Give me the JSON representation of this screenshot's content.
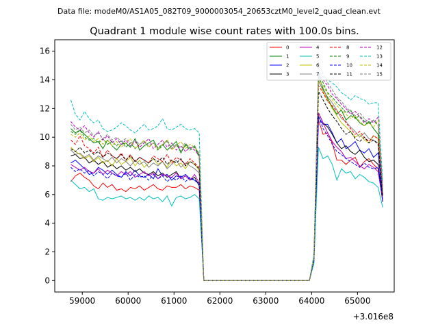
{
  "chart_data": {
    "type": "line",
    "suptitle": "Data file: modeM0/AS1A05_082T09_9000003054_20653cztM0_level2_quad_clean.evt",
    "title": "Quadrant 1 module wise count rates with 100.0s bins.",
    "xlabel": "",
    "ylabel": "",
    "x_offset_label": "+3.016e8",
    "x_ticks": [
      "59000",
      "60000",
      "61000",
      "62000",
      "63000",
      "64000",
      "65000"
    ],
    "y_ticks": [
      "0",
      "2",
      "4",
      "6",
      "8",
      "10",
      "12",
      "14",
      "16"
    ],
    "xlim": [
      301658400,
      301665800
    ],
    "ylim": [
      -0.8,
      16.8
    ],
    "grid": false,
    "legend": {
      "placement": "top-right",
      "columns": 4
    },
    "time_grid": {
      "start": 301658750,
      "step": 100,
      "count": 69
    },
    "series": [
      {
        "name": "0",
        "color": "#ff0000",
        "dash": "solid",
        "values": [
          6.9,
          7.3,
          7.5,
          7.2,
          7.0,
          6.6,
          6.4,
          6.8,
          6.5,
          6.7,
          6.3,
          6.4,
          6.2,
          6.5,
          6.4,
          6.6,
          6.3,
          6.5,
          6.7,
          6.4,
          6.3,
          6.6,
          6.5,
          6.5,
          6.7,
          6.4,
          6.6,
          6.5,
          6.3,
          0.0,
          0.0,
          0.0,
          0.0,
          0.0,
          0.0,
          0.0,
          0.0,
          0.0,
          0.0,
          0.0,
          0.0,
          0.0,
          0.0,
          0.0,
          0.0,
          0.0,
          0.0,
          0.0,
          0.0,
          0.0,
          0.0,
          0.0,
          0.0,
          1.3,
          11.2,
          10.2,
          10.3,
          9.6,
          8.4,
          8.4,
          8.1,
          8.4,
          8.6,
          7.9,
          8.3,
          8.5,
          8.1,
          7.8,
          5.5
        ]
      },
      {
        "name": "1",
        "color": "#008000",
        "dash": "solid",
        "values": [
          10.6,
          10.3,
          10.5,
          10.2,
          9.9,
          9.6,
          9.7,
          9.2,
          9.8,
          9.4,
          9.1,
          9.5,
          9.6,
          9.3,
          9.9,
          9.1,
          9.4,
          9.6,
          9.8,
          9.2,
          9.5,
          9.1,
          9.4,
          9.7,
          8.9,
          9.5,
          9.2,
          9.4,
          8.7,
          0.0,
          0.0,
          0.0,
          0.0,
          0.0,
          0.0,
          0.0,
          0.0,
          0.0,
          0.0,
          0.0,
          0.0,
          0.0,
          0.0,
          0.0,
          0.0,
          0.0,
          0.0,
          0.0,
          0.0,
          0.0,
          0.0,
          0.0,
          0.0,
          1.6,
          14.3,
          13.4,
          12.7,
          12.1,
          11.6,
          11.9,
          11.2,
          11.5,
          11.4,
          11.0,
          10.8,
          11.1,
          10.6,
          10.2,
          6.0
        ]
      },
      {
        "name": "2",
        "color": "#0000ff",
        "dash": "solid",
        "values": [
          8.2,
          8.4,
          8.1,
          7.8,
          7.4,
          7.5,
          7.9,
          7.7,
          7.4,
          7.7,
          7.4,
          7.2,
          7.6,
          7.3,
          7.7,
          7.3,
          7.2,
          7.4,
          7.1,
          7.8,
          7.3,
          7.4,
          7.0,
          7.3,
          7.2,
          7.4,
          7.1,
          7.0,
          6.8,
          0.0,
          0.0,
          0.0,
          0.0,
          0.0,
          0.0,
          0.0,
          0.0,
          0.0,
          0.0,
          0.0,
          0.0,
          0.0,
          0.0,
          0.0,
          0.0,
          0.0,
          0.0,
          0.0,
          0.0,
          0.0,
          0.0,
          0.0,
          0.0,
          1.4,
          11.4,
          10.9,
          10.9,
          10.3,
          9.6,
          9.9,
          9.2,
          9.4,
          9.7,
          9.1,
          8.9,
          9.2,
          8.6,
          8.9,
          5.6
        ]
      },
      {
        "name": "3",
        "color": "#000000",
        "dash": "solid",
        "values": [
          8.7,
          8.8,
          8.5,
          8.6,
          8.2,
          8.4,
          8.1,
          8.3,
          7.9,
          8.1,
          7.8,
          8.0,
          7.7,
          7.9,
          7.6,
          7.8,
          7.5,
          7.4,
          7.6,
          7.3,
          7.5,
          7.2,
          7.4,
          7.6,
          7.1,
          7.3,
          7.0,
          7.2,
          6.6,
          0.0,
          0.0,
          0.0,
          0.0,
          0.0,
          0.0,
          0.0,
          0.0,
          0.0,
          0.0,
          0.0,
          0.0,
          0.0,
          0.0,
          0.0,
          0.0,
          0.0,
          0.0,
          0.0,
          0.0,
          0.0,
          0.0,
          0.0,
          0.0,
          1.3,
          11.7,
          11.0,
          10.7,
          10.2,
          9.6,
          9.2,
          9.4,
          9.0,
          8.8,
          9.1,
          8.6,
          8.3,
          8.4,
          8.1,
          5.5
        ]
      },
      {
        "name": "4",
        "color": "#bf00bf",
        "dash": "solid",
        "values": [
          8.1,
          7.9,
          7.7,
          7.9,
          7.6,
          7.5,
          7.8,
          7.4,
          7.7,
          7.5,
          7.3,
          7.6,
          7.4,
          7.6,
          7.2,
          7.4,
          7.6,
          7.3,
          7.5,
          7.1,
          7.4,
          7.3,
          7.2,
          7.5,
          7.1,
          7.3,
          7.0,
          7.4,
          6.8,
          0.0,
          0.0,
          0.0,
          0.0,
          0.0,
          0.0,
          0.0,
          0.0,
          0.0,
          0.0,
          0.0,
          0.0,
          0.0,
          0.0,
          0.0,
          0.0,
          0.0,
          0.0,
          0.0,
          0.0,
          0.0,
          0.0,
          0.0,
          0.0,
          1.5,
          11.7,
          11.0,
          10.3,
          9.7,
          9.3,
          9.0,
          8.5,
          8.6,
          8.3,
          8.0,
          7.8,
          8.1,
          7.9,
          7.6,
          5.6
        ]
      },
      {
        "name": "5",
        "color": "#00bfbf",
        "dash": "solid",
        "values": [
          7.0,
          6.7,
          6.4,
          6.5,
          6.2,
          6.4,
          5.7,
          5.6,
          5.8,
          5.7,
          5.8,
          5.9,
          5.7,
          5.8,
          5.6,
          5.8,
          5.6,
          5.9,
          5.7,
          5.8,
          5.5,
          5.9,
          5.2,
          5.8,
          5.9,
          5.7,
          5.8,
          6.0,
          5.7,
          0.0,
          0.0,
          0.0,
          0.0,
          0.0,
          0.0,
          0.0,
          0.0,
          0.0,
          0.0,
          0.0,
          0.0,
          0.0,
          0.0,
          0.0,
          0.0,
          0.0,
          0.0,
          0.0,
          0.0,
          0.0,
          0.0,
          0.0,
          0.0,
          1.2,
          9.3,
          8.5,
          8.7,
          8.1,
          7.0,
          7.8,
          7.5,
          7.6,
          7.1,
          7.4,
          7.2,
          6.9,
          6.8,
          6.5,
          5.1
        ]
      },
      {
        "name": "6",
        "color": "#bfbf00",
        "dash": "solid",
        "values": [
          9.3,
          9.0,
          8.8,
          8.5,
          8.7,
          8.3,
          8.6,
          8.2,
          8.4,
          8.0,
          8.5,
          8.1,
          8.3,
          8.6,
          8.0,
          8.4,
          7.9,
          8.2,
          8.5,
          8.1,
          8.3,
          7.9,
          8.4,
          8.0,
          8.2,
          7.8,
          8.3,
          8.1,
          7.7,
          0.0,
          0.0,
          0.0,
          0.0,
          0.0,
          0.0,
          0.0,
          0.0,
          0.0,
          0.0,
          0.0,
          0.0,
          0.0,
          0.0,
          0.0,
          0.0,
          0.0,
          0.0,
          0.0,
          0.0,
          0.0,
          0.0,
          0.0,
          0.0,
          1.5,
          14.0,
          13.2,
          12.6,
          12.0,
          11.5,
          11.0,
          10.7,
          10.4,
          10.0,
          10.2,
          9.8,
          9.6,
          10.1,
          9.9,
          6.2
        ]
      },
      {
        "name": "7",
        "color": "#808080",
        "dash": "solid",
        "values": [
          9.1,
          8.8,
          8.9,
          8.6,
          8.8,
          8.4,
          8.7,
          8.5,
          8.3,
          8.6,
          8.2,
          8.5,
          8.3,
          8.0,
          8.4,
          8.1,
          8.3,
          7.9,
          8.2,
          8.0,
          8.3,
          7.8,
          8.1,
          8.4,
          7.9,
          8.2,
          8.0,
          7.8,
          7.5,
          0.0,
          0.0,
          0.0,
          0.0,
          0.0,
          0.0,
          0.0,
          0.0,
          0.0,
          0.0,
          0.0,
          0.0,
          0.0,
          0.0,
          0.0,
          0.0,
          0.0,
          0.0,
          0.0,
          0.0,
          0.0,
          0.0,
          0.0,
          0.0,
          1.5,
          13.9,
          13.3,
          12.8,
          12.4,
          11.9,
          11.3,
          11.1,
          10.7,
          10.4,
          10.0,
          10.3,
          9.9,
          9.8,
          9.6,
          6.1
        ]
      },
      {
        "name": "8",
        "color": "#ff0000",
        "dash": "dashed",
        "values": [
          9.8,
          9.5,
          10.1,
          9.4,
          9.2,
          8.9,
          9.3,
          8.6,
          9.1,
          8.7,
          8.5,
          8.9,
          8.4,
          8.8,
          8.3,
          8.6,
          8.4,
          8.2,
          8.7,
          8.5,
          8.3,
          8.8,
          8.2,
          8.6,
          8.4,
          8.1,
          8.5,
          8.2,
          7.9,
          0.0,
          0.0,
          0.0,
          0.0,
          0.0,
          0.0,
          0.0,
          0.0,
          0.0,
          0.0,
          0.0,
          0.0,
          0.0,
          0.0,
          0.0,
          0.0,
          0.0,
          0.0,
          0.0,
          0.0,
          0.0,
          0.0,
          0.0,
          0.0,
          1.6,
          13.6,
          13.1,
          12.5,
          12.2,
          11.8,
          11.5,
          11.0,
          10.6,
          10.2,
          10.4,
          10.0,
          9.7,
          10.1,
          9.9,
          6.0
        ]
      },
      {
        "name": "9",
        "color": "#008000",
        "dash": "dashed",
        "values": [
          10.4,
          10.2,
          10.5,
          10.0,
          9.8,
          9.9,
          9.6,
          9.9,
          9.5,
          9.7,
          9.4,
          9.8,
          9.3,
          9.6,
          9.2,
          9.5,
          9.7,
          9.3,
          9.6,
          9.1,
          9.4,
          9.8,
          9.2,
          9.5,
          9.0,
          9.4,
          9.1,
          9.3,
          8.6,
          0.0,
          0.0,
          0.0,
          0.0,
          0.0,
          0.0,
          0.0,
          0.0,
          0.0,
          0.0,
          0.0,
          0.0,
          0.0,
          0.0,
          0.0,
          0.0,
          0.0,
          0.0,
          0.0,
          0.0,
          0.0,
          0.0,
          0.0,
          0.0,
          1.6,
          14.4,
          13.8,
          13.1,
          12.8,
          12.4,
          12.1,
          11.7,
          11.9,
          11.3,
          11.5,
          11.1,
          10.9,
          11.2,
          10.8,
          6.4
        ]
      },
      {
        "name": "10",
        "color": "#0000ff",
        "dash": "dashed",
        "values": [
          7.9,
          7.6,
          7.8,
          7.5,
          7.7,
          7.3,
          7.6,
          7.4,
          7.1,
          7.5,
          7.3,
          7.2,
          7.5,
          7.0,
          7.4,
          7.2,
          7.3,
          7.0,
          7.4,
          7.1,
          7.3,
          6.9,
          7.2,
          7.0,
          7.3,
          6.9,
          7.2,
          7.0,
          6.7,
          0.0,
          0.0,
          0.0,
          0.0,
          0.0,
          0.0,
          0.0,
          0.0,
          0.0,
          0.0,
          0.0,
          0.0,
          0.0,
          0.0,
          0.0,
          0.0,
          0.0,
          0.0,
          0.0,
          0.0,
          0.0,
          0.0,
          0.0,
          0.0,
          1.4,
          11.5,
          10.6,
          10.1,
          9.5,
          9.0,
          8.8,
          8.5,
          8.3,
          8.1,
          7.9,
          8.2,
          7.9,
          7.8,
          7.9,
          5.5
        ]
      },
      {
        "name": "11",
        "color": "#000000",
        "dash": "dashed",
        "values": [
          9.2,
          9.0,
          9.3,
          8.9,
          9.1,
          8.8,
          9.0,
          8.6,
          8.9,
          8.7,
          8.5,
          8.8,
          8.4,
          8.7,
          8.3,
          8.6,
          8.4,
          8.2,
          8.5,
          8.3,
          8.6,
          8.1,
          8.4,
          8.2,
          8.5,
          8.0,
          8.3,
          8.1,
          7.8,
          0.0,
          0.0,
          0.0,
          0.0,
          0.0,
          0.0,
          0.0,
          0.0,
          0.0,
          0.0,
          0.0,
          0.0,
          0.0,
          0.0,
          0.0,
          0.0,
          0.0,
          0.0,
          0.0,
          0.0,
          0.0,
          0.0,
          0.0,
          0.0,
          1.5,
          13.2,
          12.6,
          12.0,
          11.5,
          11.1,
          10.6,
          10.2,
          10.4,
          9.9,
          9.7,
          10.0,
          9.6,
          9.8,
          9.5,
          5.9
        ]
      },
      {
        "name": "12",
        "color": "#bf00bf",
        "dash": "dashed",
        "values": [
          11.1,
          10.7,
          10.5,
          10.8,
          10.3,
          10.0,
          10.4,
          9.8,
          10.1,
          9.6,
          9.9,
          9.5,
          9.8,
          9.4,
          9.7,
          9.3,
          9.6,
          9.9,
          9.2,
          9.5,
          9.8,
          9.3,
          9.6,
          9.1,
          9.4,
          9.0,
          9.3,
          9.1,
          8.7,
          0.0,
          0.0,
          0.0,
          0.0,
          0.0,
          0.0,
          0.0,
          0.0,
          0.0,
          0.0,
          0.0,
          0.0,
          0.0,
          0.0,
          0.0,
          0.0,
          0.0,
          0.0,
          0.0,
          0.0,
          0.0,
          0.0,
          0.0,
          0.0,
          1.6,
          14.5,
          14.0,
          13.6,
          13.0,
          12.7,
          12.3,
          12.0,
          11.6,
          11.8,
          11.4,
          11.0,
          11.3,
          11.0,
          11.4,
          6.5
        ]
      },
      {
        "name": "13",
        "color": "#00bfbf",
        "dash": "dashed",
        "values": [
          12.6,
          11.6,
          11.2,
          11.8,
          11.3,
          11.0,
          11.2,
          10.6,
          10.4,
          10.5,
          10.7,
          11.0,
          10.8,
          10.5,
          10.3,
          10.6,
          10.9,
          10.5,
          10.6,
          10.8,
          11.3,
          10.6,
          10.5,
          10.7,
          10.9,
          10.6,
          10.5,
          10.6,
          10.3,
          0.0,
          0.0,
          0.0,
          0.0,
          0.0,
          0.0,
          0.0,
          0.0,
          0.0,
          0.0,
          0.0,
          0.0,
          0.0,
          0.0,
          0.0,
          0.0,
          0.0,
          0.0,
          0.0,
          0.0,
          0.0,
          0.0,
          0.0,
          0.0,
          1.8,
          14.6,
          14.2,
          14.0,
          13.8,
          13.5,
          13.1,
          12.9,
          12.6,
          12.9,
          12.7,
          12.6,
          12.3,
          12.4,
          12.4,
          6.9
        ]
      },
      {
        "name": "14",
        "color": "#bfbf00",
        "dash": "dashed",
        "values": [
          10.2,
          10.0,
          10.3,
          9.8,
          10.1,
          9.7,
          9.9,
          9.5,
          9.8,
          9.4,
          9.7,
          9.3,
          9.6,
          9.9,
          9.2,
          9.5,
          9.8,
          9.3,
          9.6,
          9.2,
          9.5,
          9.8,
          9.1,
          9.4,
          9.7,
          9.2,
          9.5,
          9.3,
          8.9,
          0.0,
          0.0,
          0.0,
          0.0,
          0.0,
          0.0,
          0.0,
          0.0,
          0.0,
          0.0,
          0.0,
          0.0,
          0.0,
          0.0,
          0.0,
          0.0,
          0.0,
          0.0,
          0.0,
          0.0,
          0.0,
          0.0,
          0.0,
          0.0,
          1.6,
          14.0,
          13.6,
          13.0,
          12.6,
          12.2,
          11.9,
          11.6,
          11.3,
          11.5,
          11.1,
          10.8,
          11.0,
          10.7,
          11.2,
          6.3
        ]
      },
      {
        "name": "15",
        "color": "#808080",
        "dash": "dashed",
        "values": [
          10.9,
          10.5,
          10.7,
          10.3,
          10.5,
          10.1,
          10.3,
          9.9,
          10.2,
          9.8,
          10.0,
          9.7,
          9.9,
          9.6,
          9.8,
          9.5,
          9.7,
          9.4,
          9.6,
          9.3,
          9.5,
          9.7,
          9.2,
          9.5,
          9.3,
          9.6,
          9.2,
          9.4,
          8.8,
          0.0,
          0.0,
          0.0,
          0.0,
          0.0,
          0.0,
          0.0,
          0.0,
          0.0,
          0.0,
          0.0,
          0.0,
          0.0,
          0.0,
          0.0,
          0.0,
          0.0,
          0.0,
          0.0,
          0.0,
          0.0,
          0.0,
          0.0,
          0.0,
          1.6,
          15.2,
          14.4,
          13.8,
          13.3,
          12.8,
          12.5,
          12.1,
          11.8,
          11.5,
          11.7,
          11.3,
          11.0,
          11.2,
          10.9,
          6.2
        ]
      }
    ]
  }
}
